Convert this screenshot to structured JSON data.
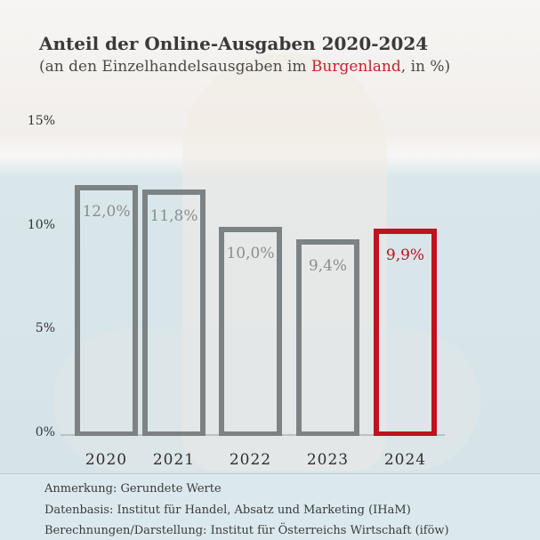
{
  "chart_data": {
    "type": "bar",
    "title": "Anteil der Online-Ausgaben 2020-2024",
    "subtitle_pre": "(an den Einzelhandelsausgaben im ",
    "subtitle_highlight": "Burgenland",
    "subtitle_post": ", in %)",
    "categories": [
      "2020",
      "2021",
      "2022",
      "2023",
      "2024"
    ],
    "values": [
      12.0,
      11.8,
      10.0,
      9.4,
      9.9
    ],
    "value_labels": [
      "12,0%",
      "11,8%",
      "10,0%",
      "9,4%",
      "9,9%"
    ],
    "highlight_index": 4,
    "ylim": [
      0,
      15
    ],
    "yticks": [
      {
        "v": 0,
        "label": "0%"
      },
      {
        "v": 5,
        "label": "5%"
      },
      {
        "v": 10,
        "label": "10%"
      },
      {
        "v": 15,
        "label": "15%"
      }
    ],
    "grid": false,
    "colors": {
      "bar": "#7d8284",
      "highlight": "#c0121f"
    }
  },
  "notes": [
    "Anmerkung: Gerundete Werte",
    "Datenbasis: Institut für Handel, Absatz und Marketing (IHaM)",
    "Berechnungen/Darstellung: Institut für Österreichs Wirtschaft (iföw)"
  ]
}
